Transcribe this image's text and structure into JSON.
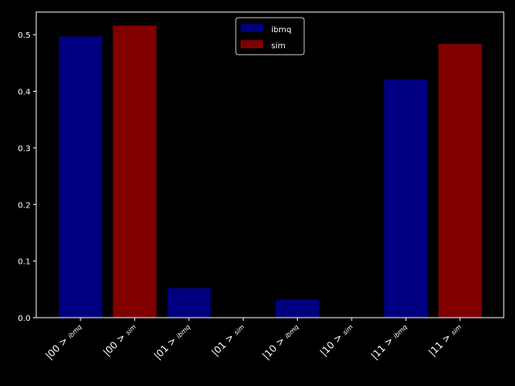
{
  "chart_data": {
    "type": "bar",
    "title": "",
    "xlabel": "",
    "ylabel": "",
    "ylim": [
      0,
      0.54
    ],
    "yticks": [
      "0.0",
      "0.1",
      "0.2",
      "0.3",
      "0.4",
      "0.5"
    ],
    "grid": false,
    "legend_position": "top-center",
    "categories": [
      {
        "state": "|00 >",
        "sub": "ibmq",
        "series": "ibmq",
        "value": 0.497
      },
      {
        "state": "|00 >",
        "sub": "sim",
        "series": "sim",
        "value": 0.516
      },
      {
        "state": "|01 >",
        "sub": "ibmq",
        "series": "ibmq",
        "value": 0.052
      },
      {
        "state": "|01 >",
        "sub": "sim",
        "series": "sim",
        "value": 0.0
      },
      {
        "state": "|10 >",
        "sub": "ibmq",
        "series": "ibmq",
        "value": 0.032
      },
      {
        "state": "|10 >",
        "sub": "sim",
        "series": "sim",
        "value": 0.0
      },
      {
        "state": "|11 >",
        "sub": "ibmq",
        "series": "ibmq",
        "value": 0.421
      },
      {
        "state": "|11 >",
        "sub": "sim",
        "series": "sim",
        "value": 0.484
      }
    ],
    "series": [
      {
        "name": "ibmq",
        "color": "#000080"
      },
      {
        "name": "sim",
        "color": "#800000"
      }
    ]
  }
}
